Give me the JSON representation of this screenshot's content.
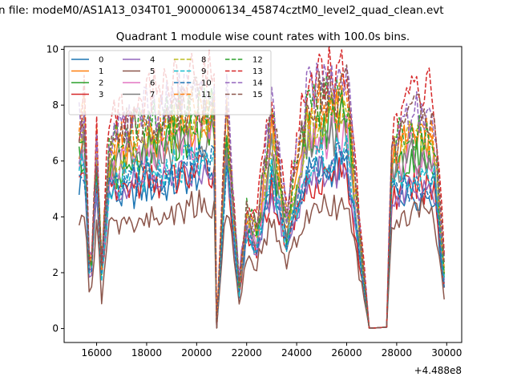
{
  "figure": {
    "suptitle": "n file: modeM0/AS1A13_034T01_9000006134_45874cztM0_level2_quad_clean.evt",
    "title": "Quadrant 1 module wise count rates with 100.0s bins.",
    "x_offset_label": "+4.488e8"
  },
  "chart_data": {
    "type": "line",
    "title": "Quadrant 1 module wise count rates with 100.0s bins.",
    "xlabel": "",
    "ylabel": "",
    "x_offset_text": "+4.488e8",
    "xlim": [
      14700,
      30600
    ],
    "ylim": [
      -0.5,
      10.1
    ],
    "xticks": [
      16000,
      18000,
      20000,
      22000,
      24000,
      26000,
      28000,
      30000
    ],
    "xtick_labels": [
      "16000",
      "18000",
      "20000",
      "22000",
      "24000",
      "26000",
      "28000",
      "30000"
    ],
    "yticks": [
      0,
      2,
      4,
      6,
      8,
      10
    ],
    "ytick_labels": [
      "0",
      "2",
      "4",
      "6",
      "8",
      "10"
    ],
    "grid": false,
    "legend_placement": "top-left",
    "legend_columns": 4,
    "anchor_x": [
      15300,
      15500,
      15750,
      16000,
      16200,
      16500,
      17000,
      18000,
      19000,
      19800,
      20700,
      20800,
      21200,
      21700,
      22000,
      22400,
      23000,
      23600,
      24400,
      25000,
      26000,
      26900,
      27100,
      27600,
      27800,
      28400,
      29000,
      29500,
      29900
    ],
    "series": [
      {
        "name": "0",
        "color": "#1f77b4",
        "dash": "solid",
        "values": [
          5.2,
          5.8,
          1.3,
          4.8,
          2.0,
          4.8,
          4.7,
          5.0,
          5.1,
          5.5,
          5.6,
          0.02,
          5.8,
          1.2,
          3.3,
          2.8,
          5.3,
          3.0,
          5.5,
          5.7,
          5.8,
          0.02,
          0.02,
          0.05,
          4.9,
          4.9,
          4.8,
          4.9,
          1.6
        ]
      },
      {
        "name": "1",
        "color": "#ff7f0e",
        "dash": "solid",
        "values": [
          6.5,
          7.0,
          1.3,
          5.5,
          2.2,
          6.0,
          6.5,
          6.8,
          7.0,
          7.1,
          7.5,
          0.02,
          7.2,
          1.5,
          3.8,
          3.3,
          7.0,
          3.7,
          7.2,
          7.6,
          7.9,
          0.02,
          0.02,
          0.05,
          6.0,
          6.8,
          6.9,
          6.6,
          2.1
        ]
      },
      {
        "name": "2",
        "color": "#2ca02c",
        "dash": "solid",
        "values": [
          5.9,
          6.4,
          1.2,
          5.5,
          2.1,
          5.5,
          5.7,
          6.5,
          6.8,
          7.0,
          7.0,
          0.02,
          6.9,
          1.4,
          3.6,
          3.1,
          6.2,
          3.4,
          6.9,
          7.3,
          7.5,
          0.02,
          0.02,
          0.05,
          5.5,
          6.2,
          6.3,
          6.0,
          1.9
        ]
      },
      {
        "name": "3",
        "color": "#d62728",
        "dash": "solid",
        "values": [
          5.5,
          6.0,
          1.1,
          4.9,
          1.9,
          4.8,
          5.0,
          5.3,
          5.3,
          5.6,
          5.7,
          0.02,
          5.9,
          1.3,
          3.2,
          2.8,
          5.0,
          3.0,
          5.2,
          5.4,
          5.6,
          0.02,
          0.02,
          0.05,
          4.6,
          5.0,
          5.1,
          5.0,
          1.6
        ]
      },
      {
        "name": "4",
        "color": "#9467bd",
        "dash": "solid",
        "values": [
          5.6,
          6.0,
          1.1,
          4.9,
          1.9,
          5.0,
          5.1,
          5.3,
          5.4,
          5.7,
          5.8,
          0.02,
          5.9,
          1.3,
          3.3,
          2.9,
          5.1,
          3.0,
          5.3,
          5.6,
          5.8,
          0.02,
          0.02,
          0.05,
          4.7,
          5.1,
          5.2,
          5.1,
          1.7
        ]
      },
      {
        "name": "5",
        "color": "#8c564b",
        "dash": "solid",
        "values": [
          4.1,
          4.2,
          0.8,
          3.9,
          1.0,
          3.6,
          3.7,
          3.9,
          4.1,
          4.4,
          4.5,
          0.02,
          4.6,
          0.9,
          2.6,
          2.3,
          3.9,
          2.3,
          4.0,
          4.3,
          4.4,
          0.02,
          0.02,
          0.05,
          3.5,
          4.0,
          4.4,
          3.9,
          1.1
        ]
      },
      {
        "name": "6",
        "color": "#e377c2",
        "dash": "solid",
        "values": [
          6.3,
          6.6,
          1.2,
          5.7,
          2.1,
          5.8,
          6.0,
          6.4,
          6.6,
          6.8,
          7.1,
          0.02,
          6.9,
          1.4,
          3.6,
          3.1,
          6.4,
          3.4,
          6.6,
          6.9,
          7.1,
          0.02,
          0.02,
          0.05,
          5.6,
          6.2,
          6.3,
          6.1,
          1.9
        ]
      },
      {
        "name": "7",
        "color": "#7f7f7f",
        "dash": "solid",
        "values": [
          6.1,
          6.5,
          1.2,
          5.6,
          2.0,
          5.7,
          5.9,
          6.3,
          6.5,
          6.7,
          6.9,
          0.02,
          6.8,
          1.4,
          3.6,
          3.1,
          6.3,
          3.3,
          6.5,
          6.8,
          7.0,
          0.02,
          0.02,
          0.05,
          5.5,
          6.1,
          6.2,
          6.0,
          1.9
        ]
      },
      {
        "name": "8",
        "color": "#bcbd22",
        "dash": "dashed",
        "values": [
          6.6,
          7.1,
          1.3,
          6.0,
          2.2,
          6.2,
          6.4,
          6.9,
          7.3,
          7.5,
          7.6,
          0.02,
          7.4,
          1.5,
          3.9,
          3.4,
          6.9,
          3.7,
          7.2,
          7.7,
          7.9,
          0.02,
          0.02,
          0.05,
          6.0,
          6.7,
          6.8,
          6.5,
          2.1
        ]
      },
      {
        "name": "9",
        "color": "#17becf",
        "dash": "dashed",
        "values": [
          5.3,
          5.9,
          1.2,
          5.2,
          1.9,
          5.1,
          5.3,
          5.6,
          5.8,
          6.0,
          6.0,
          0.02,
          6.0,
          1.3,
          3.4,
          3.0,
          5.5,
          3.1,
          5.8,
          6.1,
          6.3,
          0.02,
          0.02,
          0.05,
          5.1,
          5.4,
          5.5,
          5.3,
          1.7
        ]
      },
      {
        "name": "10",
        "color": "#1f77b4",
        "dash": "dashed",
        "values": [
          5.4,
          6.0,
          1.2,
          5.2,
          1.9,
          5.0,
          5.2,
          5.4,
          5.5,
          5.9,
          5.9,
          0.02,
          5.9,
          1.3,
          3.3,
          2.9,
          5.3,
          3.0,
          5.6,
          5.8,
          6.0,
          0.02,
          0.02,
          0.05,
          4.8,
          5.1,
          5.2,
          5.1,
          1.6
        ]
      },
      {
        "name": "11",
        "color": "#ff7f0e",
        "dash": "dashed",
        "values": [
          7.2,
          7.6,
          1.4,
          6.4,
          2.3,
          6.6,
          6.8,
          7.3,
          7.6,
          7.8,
          8.0,
          0.02,
          7.8,
          1.6,
          4.1,
          3.6,
          7.4,
          3.9,
          7.6,
          8.0,
          8.2,
          0.02,
          0.02,
          0.05,
          6.3,
          7.0,
          7.1,
          6.8,
          2.2
        ]
      },
      {
        "name": "12",
        "color": "#2ca02c",
        "dash": "dashed",
        "values": [
          6.8,
          7.3,
          1.3,
          6.2,
          2.3,
          6.6,
          6.9,
          7.3,
          7.6,
          7.9,
          8.1,
          0.02,
          7.9,
          1.6,
          4.2,
          3.6,
          7.5,
          3.9,
          7.8,
          8.1,
          8.3,
          0.02,
          0.02,
          0.05,
          6.3,
          7.2,
          7.2,
          6.9,
          2.2
        ]
      },
      {
        "name": "13",
        "color": "#d62728",
        "dash": "dashed",
        "values": [
          7.6,
          8.1,
          1.5,
          7.0,
          2.5,
          7.5,
          7.8,
          8.2,
          8.6,
          8.8,
          9.0,
          0.02,
          8.7,
          1.8,
          4.6,
          4.0,
          8.3,
          4.4,
          8.8,
          9.2,
          9.4,
          0.02,
          0.02,
          0.05,
          7.0,
          8.2,
          8.9,
          8.5,
          2.5
        ]
      },
      {
        "name": "14",
        "color": "#9467bd",
        "dash": "dashed",
        "values": [
          7.3,
          7.8,
          1.4,
          6.7,
          2.4,
          7.0,
          7.3,
          7.8,
          8.1,
          8.3,
          8.5,
          0.02,
          8.3,
          1.7,
          4.4,
          3.8,
          7.9,
          4.1,
          8.3,
          8.7,
          8.9,
          0.02,
          0.02,
          0.05,
          6.7,
          7.6,
          7.9,
          7.5,
          2.4
        ]
      },
      {
        "name": "15",
        "color": "#8c564b",
        "dash": "dashed",
        "values": [
          7.0,
          7.5,
          1.3,
          6.5,
          2.3,
          6.8,
          7.0,
          7.5,
          7.8,
          8.0,
          8.2,
          0.02,
          8.0,
          1.6,
          4.2,
          3.7,
          7.6,
          4.0,
          8.0,
          8.4,
          8.6,
          0.02,
          0.02,
          0.05,
          6.5,
          7.3,
          7.6,
          7.2,
          2.3
        ]
      }
    ]
  }
}
